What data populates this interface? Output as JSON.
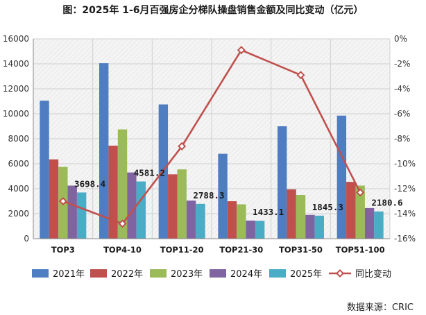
{
  "title": "图：2025年 1-6月百强房企分梯队操盘销售金额及同比变动（亿元）",
  "source": "数据来源：CRIC",
  "chart_data": {
    "type": "bar",
    "categories": [
      "TOP3",
      "TOP4-10",
      "TOP11-20",
      "TOP21-30",
      "TOP31-50",
      "TOP51-100"
    ],
    "series": [
      {
        "name": "2021年",
        "color": "#4f7dc2",
        "values": [
          11050,
          14050,
          10750,
          6800,
          9000,
          9850
        ]
      },
      {
        "name": "2022年",
        "color": "#c0504d",
        "values": [
          6350,
          7450,
          5150,
          3000,
          3950,
          4550
        ]
      },
      {
        "name": "2023年",
        "color": "#9bbb59",
        "values": [
          5750,
          8750,
          5550,
          2750,
          3500,
          4250
        ]
      },
      {
        "name": "2024年",
        "color": "#8064a2",
        "values": [
          4250,
          5300,
          3050,
          1450,
          1900,
          2450
        ]
      },
      {
        "name": "2025年",
        "color": "#4bacc6",
        "values": [
          3698.4,
          4581.2,
          2788.3,
          1433.1,
          1845.3,
          2180.6
        ]
      }
    ],
    "data_labels": [
      "3698.4",
      "4581.2",
      "2788.3",
      "1433.1",
      "1845.3",
      "2180.6"
    ],
    "line": {
      "name": "同比变动",
      "color": "#c0504d",
      "values": [
        -13.0,
        -14.8,
        -8.6,
        -0.9,
        -2.9,
        -12.3
      ]
    },
    "ylim": [
      0,
      16000
    ],
    "yticks": [
      0,
      2000,
      4000,
      6000,
      8000,
      10000,
      12000,
      14000,
      16000
    ],
    "y2lim": [
      -16,
      0
    ],
    "y2ticks": [
      0,
      -2,
      -4,
      -6,
      -8,
      -10,
      -12,
      -14,
      -16
    ],
    "y2tick_labels": [
      "0%",
      "-2%",
      "-4%",
      "-6%",
      "-8%",
      "-10%",
      "-12%",
      "-14%",
      "-16%"
    ],
    "grid": true,
    "legend_position": "bottom"
  }
}
